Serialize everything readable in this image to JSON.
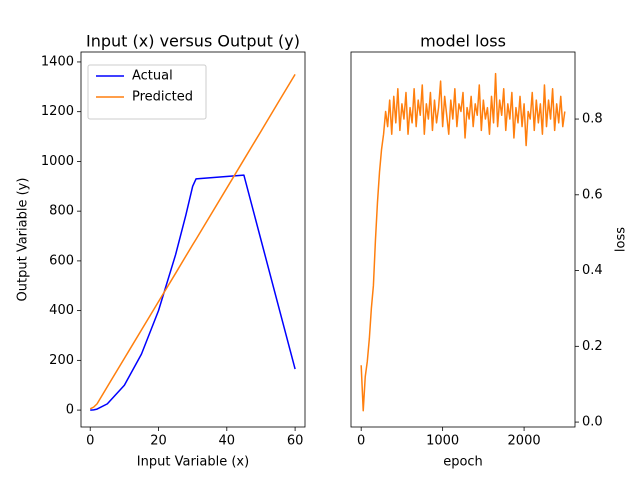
{
  "chart_data": [
    {
      "type": "line",
      "title": "Input (x) versus Output (y)",
      "xlabel": "Input Variable (x)",
      "ylabel": "Output Variable (y)",
      "x": [
        0,
        1,
        2,
        5,
        10,
        15,
        20,
        25,
        28,
        30,
        31,
        45,
        50,
        55,
        60
      ],
      "series": [
        {
          "name": "Actual",
          "color": "#0000ff",
          "values": [
            0,
            1,
            4,
            25,
            100,
            225,
            400,
            625,
            784,
            900,
            930,
            945,
            685,
            425,
            165
          ]
        },
        {
          "name": "Predicted",
          "color": "#ff7f0e",
          "values": [
            5,
            12,
            25,
            94,
            208,
            322,
            436,
            550,
            619,
            665,
            687,
            1007,
            1121,
            1236,
            1350
          ]
        }
      ],
      "xlim": [
        -2.7,
        62.9
      ],
      "xticks": [
        0,
        20,
        40,
        60
      ],
      "ylim": [
        -68,
        1440
      ],
      "yticks": [
        0,
        200,
        400,
        600,
        800,
        1000,
        1200,
        1400
      ],
      "legend": "upper left",
      "yaxis_side": "left"
    },
    {
      "type": "line",
      "title": "model loss",
      "xlabel": "epoch",
      "ylabel": "loss",
      "x": [
        0,
        25,
        50,
        75,
        100,
        125,
        150,
        175,
        200,
        225,
        250,
        275,
        300,
        325,
        350,
        375,
        400,
        425,
        450,
        475,
        500,
        525,
        550,
        575,
        600,
        625,
        650,
        675,
        700,
        725,
        750,
        775,
        800,
        825,
        850,
        875,
        900,
        925,
        950,
        975,
        1000,
        1025,
        1050,
        1075,
        1100,
        1125,
        1150,
        1175,
        1200,
        1225,
        1250,
        1275,
        1300,
        1325,
        1350,
        1375,
        1400,
        1425,
        1450,
        1475,
        1500,
        1525,
        1550,
        1575,
        1600,
        1625,
        1650,
        1675,
        1700,
        1725,
        1750,
        1775,
        1800,
        1825,
        1850,
        1875,
        1900,
        1925,
        1950,
        1975,
        2000,
        2025,
        2050,
        2075,
        2100,
        2125,
        2150,
        2175,
        2200,
        2225,
        2250,
        2275,
        2300,
        2325,
        2350,
        2375,
        2400,
        2425,
        2450,
        2475,
        2500
      ],
      "series": [
        {
          "color": "#ff7f0e",
          "values": [
            0.15,
            0.03,
            0.12,
            0.16,
            0.22,
            0.3,
            0.36,
            0.48,
            0.58,
            0.66,
            0.72,
            0.76,
            0.82,
            0.78,
            0.85,
            0.76,
            0.86,
            0.79,
            0.88,
            0.77,
            0.84,
            0.8,
            0.87,
            0.76,
            0.83,
            0.79,
            0.88,
            0.78,
            0.85,
            0.81,
            0.89,
            0.76,
            0.84,
            0.8,
            0.87,
            0.77,
            0.85,
            0.79,
            0.83,
            0.9,
            0.78,
            0.86,
            0.81,
            0.76,
            0.85,
            0.8,
            0.88,
            0.78,
            0.84,
            0.82,
            0.87,
            0.75,
            0.83,
            0.8,
            0.86,
            0.78,
            0.84,
            0.81,
            0.89,
            0.77,
            0.85,
            0.8,
            0.83,
            0.76,
            0.86,
            0.79,
            0.92,
            0.78,
            0.85,
            0.81,
            0.88,
            0.77,
            0.84,
            0.8,
            0.87,
            0.75,
            0.83,
            0.79,
            0.86,
            0.78,
            0.84,
            0.73,
            0.82,
            0.8,
            0.87,
            0.77,
            0.85,
            0.79,
            0.84,
            0.76,
            0.89,
            0.78,
            0.85,
            0.8,
            0.88,
            0.77,
            0.84,
            0.79,
            0.86,
            0.78,
            0.82
          ]
        }
      ],
      "xlim": [
        -125,
        2625
      ],
      "xticks": [
        0,
        1000,
        2000
      ],
      "ylim": [
        -0.013,
        0.977
      ],
      "yticks": [
        {
          "value": 0,
          "label": "0.0"
        },
        0.2,
        0.4,
        0.6,
        0.8
      ],
      "yaxis_side": "right"
    }
  ]
}
